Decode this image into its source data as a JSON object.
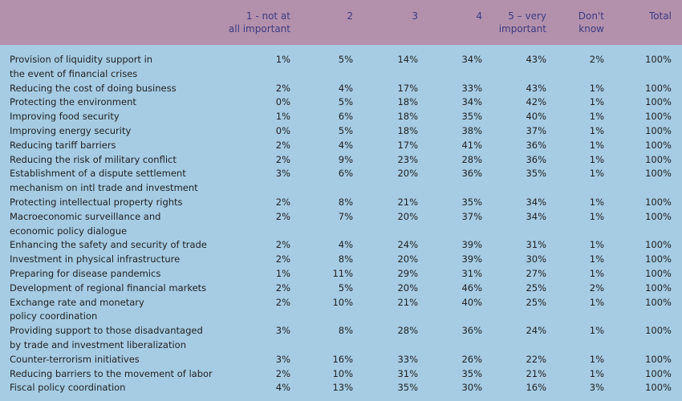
{
  "headers": [
    "1 - not at\nall important",
    "2",
    "3",
    "4",
    "5 – very\nimportant",
    "Don't\nknow",
    "Total"
  ],
  "rows": [
    {
      "label": "Provision of liquidity support in\nthe event of financial crises",
      "values": [
        "1%",
        "5%",
        "14%",
        "34%",
        "43%",
        "2%",
        "100%"
      ]
    },
    {
      "label": "Reducing the cost of doing business",
      "values": [
        "2%",
        "4%",
        "17%",
        "33%",
        "43%",
        "1%",
        "100%"
      ]
    },
    {
      "label": "Protecting the environment",
      "values": [
        "0%",
        "5%",
        "18%",
        "34%",
        "42%",
        "1%",
        "100%"
      ]
    },
    {
      "label": "Improving food security",
      "values": [
        "1%",
        "6%",
        "18%",
        "35%",
        "40%",
        "1%",
        "100%"
      ]
    },
    {
      "label": "Improving energy security",
      "values": [
        "0%",
        "5%",
        "18%",
        "38%",
        "37%",
        "1%",
        "100%"
      ]
    },
    {
      "label": "Reducing tariff barriers",
      "values": [
        "2%",
        "4%",
        "17%",
        "41%",
        "36%",
        "1%",
        "100%"
      ]
    },
    {
      "label": "Reducing the risk of military conflict",
      "values": [
        "2%",
        "9%",
        "23%",
        "28%",
        "36%",
        "1%",
        "100%"
      ]
    },
    {
      "label": "Establishment of a dispute settlement\nmechanism on intl trade and investment",
      "values": [
        "3%",
        "6%",
        "20%",
        "36%",
        "35%",
        "1%",
        "100%"
      ]
    },
    {
      "label": "Protecting intellectual property rights",
      "values": [
        "2%",
        "8%",
        "21%",
        "35%",
        "34%",
        "1%",
        "100%"
      ]
    },
    {
      "label": "Macroeconomic surveillance and\neconomic policy dialogue",
      "values": [
        "2%",
        "7%",
        "20%",
        "37%",
        "34%",
        "1%",
        "100%"
      ]
    },
    {
      "label": "Enhancing the safety and security of trade",
      "values": [
        "2%",
        "4%",
        "24%",
        "39%",
        "31%",
        "1%",
        "100%"
      ]
    },
    {
      "label": "Investment in physical infrastructure",
      "values": [
        "2%",
        "8%",
        "20%",
        "39%",
        "30%",
        "1%",
        "100%"
      ]
    },
    {
      "label": "Preparing for disease pandemics",
      "values": [
        "1%",
        "11%",
        "29%",
        "31%",
        "27%",
        "1%",
        "100%"
      ]
    },
    {
      "label": "Development of regional financial markets",
      "values": [
        "2%",
        "5%",
        "20%",
        "46%",
        "25%",
        "2%",
        "100%"
      ]
    },
    {
      "label": "Exchange rate and monetary\npolicy coordination",
      "values": [
        "2%",
        "10%",
        "21%",
        "40%",
        "25%",
        "1%",
        "100%"
      ]
    },
    {
      "label": "Providing support to those disadvantaged\nby trade and investment liberalization",
      "values": [
        "3%",
        "8%",
        "28%",
        "36%",
        "24%",
        "1%",
        "100%"
      ]
    },
    {
      "label": "Counter-terrorism initiatives",
      "values": [
        "3%",
        "16%",
        "33%",
        "26%",
        "22%",
        "1%",
        "100%"
      ]
    },
    {
      "label": "Reducing barriers to the movement of labor",
      "values": [
        "2%",
        "10%",
        "31%",
        "35%",
        "21%",
        "1%",
        "100%"
      ]
    },
    {
      "label": "Fiscal policy coordination",
      "values": [
        "4%",
        "13%",
        "35%",
        "30%",
        "16%",
        "3%",
        "100%"
      ]
    }
  ]
}
